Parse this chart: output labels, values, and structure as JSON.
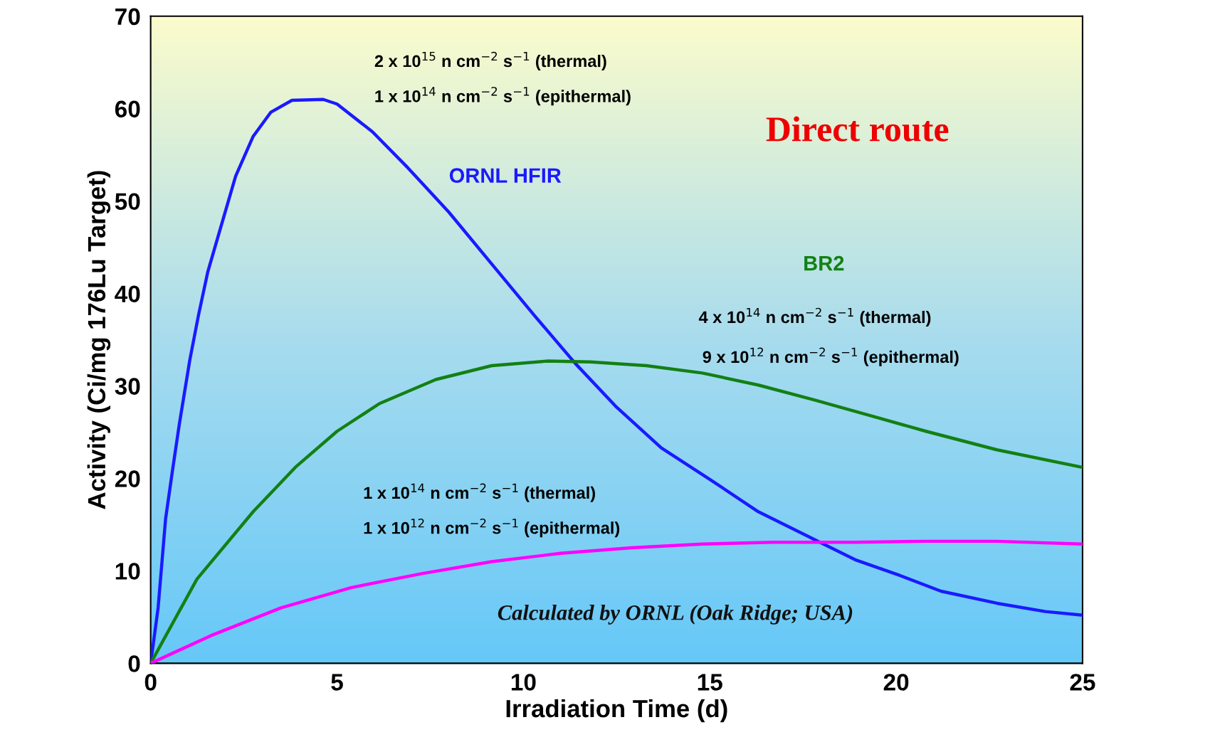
{
  "chart_data": {
    "type": "line",
    "xlabel": "Irradiation Time (d)",
    "ylabel": "Activity (Ci/mg 176Lu Target)",
    "xlim": [
      0,
      25
    ],
    "xticks": [
      0,
      5,
      10,
      15,
      20,
      25
    ],
    "ylim": [
      0,
      70
    ],
    "yticks": [
      0,
      10,
      20,
      30,
      40,
      50,
      60,
      70
    ],
    "grid": false,
    "legend": false,
    "marker": "none",
    "line_style": "solid",
    "series": [
      {
        "name": "ORNL HFIR",
        "color": "#1a1aff",
        "x": [
          0,
          0.2,
          0.4,
          0.58,
          0.77,
          1.05,
          1.28,
          1.53,
          1.81,
          2.28,
          2.75,
          3.22,
          3.79,
          4.63,
          5.0,
          5.95,
          6.9,
          8.0,
          9.15,
          10.3,
          11.4,
          12.5,
          13.7,
          15,
          16.3,
          17.6,
          18.9,
          20.1,
          21.2,
          22.7,
          24.0,
          25
        ],
        "values": [
          0,
          6,
          15.6,
          20.7,
          25.9,
          32.8,
          37.6,
          42.3,
          46.2,
          52.7,
          57,
          59.6,
          60.9,
          61,
          60.5,
          57.5,
          53.6,
          48.8,
          43.2,
          37.6,
          32.4,
          27.7,
          23.3,
          19.9,
          16.4,
          13.8,
          11.2,
          9.5,
          7.8,
          6.5,
          5.6,
          5.2
        ]
      },
      {
        "name": "BR2",
        "color": "#138013",
        "x": [
          0,
          1.24,
          2.75,
          3.88,
          5.0,
          6.14,
          7.65,
          9.15,
          10.66,
          11.8,
          13.3,
          14.8,
          16.3,
          17.8,
          19.3,
          20.8,
          22.7,
          25
        ],
        "values": [
          0,
          9.1,
          16.4,
          21.2,
          25.1,
          28.1,
          30.7,
          32.2,
          32.7,
          32.6,
          32.2,
          31.4,
          30.1,
          28.5,
          26.8,
          25.1,
          23.1,
          21.2
        ]
      },
      {
        "color": "#ff00ff",
        "x": [
          0,
          1.62,
          3.5,
          5.39,
          7.27,
          9.15,
          11.0,
          12.9,
          14.8,
          16.7,
          18.9,
          20.8,
          22.7,
          25
        ],
        "values": [
          0,
          3.0,
          6.0,
          8.2,
          9.7,
          11.0,
          11.9,
          12.5,
          12.9,
          13.1,
          13.1,
          13.2,
          13.2,
          12.9
        ]
      }
    ],
    "annotations": [
      "2 x 10$^{15}$ n cm$^{−2}$ s$^{−1}$ (thermal)",
      "1 x 10$^{14}$ n cm$^{−2}$ s$^{−1}$ (epithermal)",
      "4 x 10$^{14}$ n cm$^{−2}$ s$^{−1}$ (thermal)",
      "9 x 10$^{12}$ n cm$^{−2}$ s$^{−1}$ (epithermal)",
      "1 x 10$^{14}$ n cm$^{−2}$ s$^{−1}$ (thermal)",
      "1 x 10$^{12}$ n cm$^{−2}$ s$^{−1}$ (epithermal)",
      "Direct route",
      "Calculated by ORNL (Oak Ridge; USA)"
    ]
  }
}
